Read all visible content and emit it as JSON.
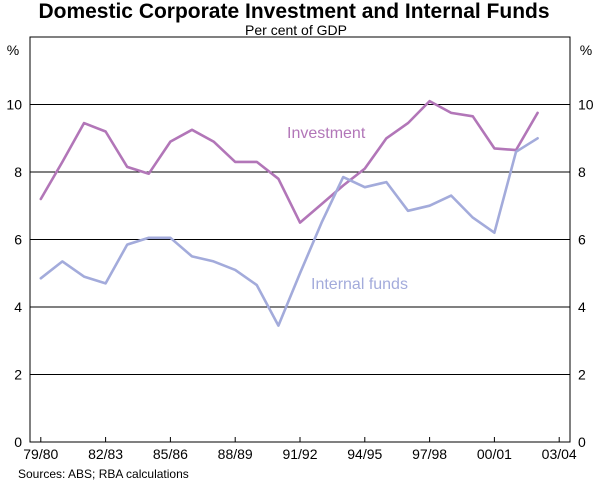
{
  "chart_data": {
    "type": "line",
    "title": "Domestic Corporate Investment and Internal Funds",
    "subtitle": "Per cent of GDP",
    "y_unit_left": "%",
    "y_unit_right": "%",
    "ylim": [
      0,
      12
    ],
    "yticks": [
      0,
      2,
      4,
      6,
      8,
      10
    ],
    "x_tick_labels": [
      "79/80",
      "82/83",
      "85/86",
      "88/89",
      "91/92",
      "94/95",
      "97/98",
      "00/01",
      "03/04"
    ],
    "x_tick_index_start": 0,
    "x_tick_every": 3,
    "grid": true,
    "x": [
      "79/80",
      "80/81",
      "81/82",
      "82/83",
      "83/84",
      "84/85",
      "85/86",
      "86/87",
      "87/88",
      "88/89",
      "89/90",
      "90/91",
      "91/92",
      "92/93",
      "93/94",
      "94/95",
      "95/96",
      "96/97",
      "97/98",
      "98/99",
      "99/00",
      "00/01",
      "01/02",
      "02/03",
      "03/04"
    ],
    "series": [
      {
        "name": "Investment",
        "color": "#b276b8",
        "values": [
          7.2,
          8.3,
          9.45,
          9.2,
          8.15,
          7.95,
          8.9,
          9.25,
          8.9,
          8.3,
          8.3,
          7.8,
          6.5,
          7.05,
          7.6,
          8.1,
          9.0,
          9.45,
          10.1,
          9.75,
          9.65,
          8.7,
          8.65,
          9.75,
          null
        ]
      },
      {
        "name": "Internal funds",
        "color": "#a3abdb",
        "values": [
          4.85,
          5.35,
          4.9,
          4.7,
          5.85,
          6.05,
          6.05,
          5.5,
          5.35,
          5.1,
          4.65,
          3.45,
          5.0,
          6.5,
          7.85,
          7.55,
          7.7,
          6.85,
          7.0,
          7.3,
          6.65,
          6.2,
          8.6,
          9.0,
          null
        ]
      }
    ],
    "series_labels": {
      "Investment": "Investment",
      "Internal funds": "Internal funds"
    },
    "source": "Sources: ABS; RBA calculations"
  }
}
